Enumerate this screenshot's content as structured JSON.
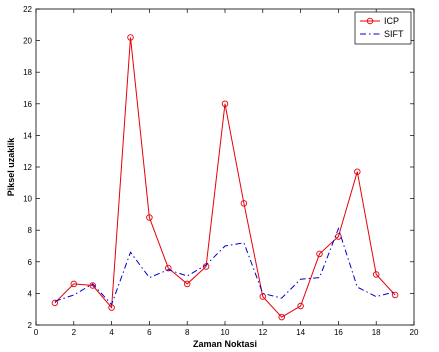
{
  "chart_data": {
    "type": "line",
    "title": "",
    "xlabel": "Zaman Noktasi",
    "ylabel": "Piksel uzaklik",
    "xlim": [
      0,
      20
    ],
    "ylim": [
      2,
      22
    ],
    "xticks": [
      0,
      2,
      4,
      6,
      8,
      10,
      12,
      14,
      16,
      18,
      20
    ],
    "yticks": [
      2,
      4,
      6,
      8,
      10,
      12,
      14,
      16,
      18,
      20,
      22
    ],
    "grid": false,
    "legend_position": "top-right",
    "x": [
      1,
      2,
      3,
      4,
      5,
      6,
      7,
      8,
      9,
      10,
      11,
      12,
      13,
      14,
      15,
      16,
      17,
      18,
      19
    ],
    "series": [
      {
        "name": "ICP",
        "color": "#e8000b",
        "style": "solid",
        "marker": "circle",
        "values": [
          3.4,
          4.6,
          4.5,
          3.1,
          20.2,
          8.8,
          5.6,
          4.6,
          5.7,
          16.0,
          9.7,
          3.8,
          2.5,
          3.2,
          6.5,
          7.6,
          11.7,
          5.2,
          3.9
        ]
      },
      {
        "name": "SIFT",
        "color": "#0000cc",
        "style": "dashdot",
        "marker": "none",
        "values": [
          3.5,
          3.9,
          4.6,
          3.3,
          6.6,
          5.0,
          5.5,
          5.1,
          5.8,
          7.0,
          7.2,
          4.0,
          3.7,
          4.9,
          5.0,
          8.1,
          4.4,
          3.8,
          4.1
        ]
      }
    ]
  }
}
